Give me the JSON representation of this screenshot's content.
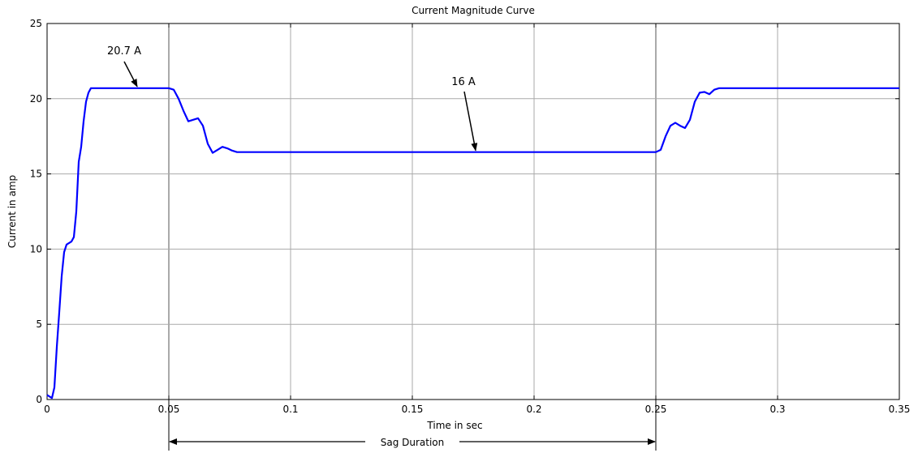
{
  "chart_data": {
    "type": "line",
    "title": "Current Magnitude Curve",
    "xlabel": "Time in sec",
    "ylabel": "Current in amp",
    "xlim": [
      0,
      0.35
    ],
    "ylim": [
      0,
      25
    ],
    "x_ticks": [
      0,
      0.05,
      0.1,
      0.15,
      0.2,
      0.25,
      0.3,
      0.35
    ],
    "x_tick_labels": [
      "0",
      "0.05",
      "0.1",
      "0.15",
      "0.2",
      "0.25",
      "0.3",
      "0.35"
    ],
    "y_ticks": [
      0,
      5,
      10,
      15,
      20,
      25
    ],
    "y_tick_labels": [
      "0",
      "5",
      "10",
      "15",
      "20",
      "25"
    ],
    "grid": true,
    "series": [
      {
        "color": "#0000ff",
        "x": [
          0,
          0.002,
          0.003,
          0.004,
          0.005,
          0.006,
          0.007,
          0.008,
          0.009,
          0.01,
          0.011,
          0.012,
          0.013,
          0.014,
          0.015,
          0.016,
          0.017,
          0.018,
          0.019,
          0.02,
          0.03,
          0.04,
          0.05,
          0.052,
          0.054,
          0.056,
          0.058,
          0.06,
          0.062,
          0.064,
          0.066,
          0.068,
          0.07,
          0.072,
          0.074,
          0.076,
          0.078,
          0.1,
          0.15,
          0.2,
          0.25,
          0.252,
          0.254,
          0.256,
          0.258,
          0.26,
          0.262,
          0.264,
          0.266,
          0.268,
          0.27,
          0.272,
          0.274,
          0.276,
          0.3,
          0.35
        ],
        "y": [
          0.3,
          0.1,
          0.8,
          3.5,
          5.8,
          8.2,
          9.8,
          10.3,
          10.4,
          10.5,
          10.8,
          12.5,
          15.8,
          16.8,
          18.5,
          19.8,
          20.4,
          20.7,
          20.7,
          20.7,
          20.7,
          20.7,
          20.7,
          20.6,
          20.0,
          19.2,
          18.5,
          18.6,
          18.7,
          18.2,
          17.0,
          16.4,
          16.6,
          16.8,
          16.7,
          16.55,
          16.45,
          16.45,
          16.45,
          16.45,
          16.45,
          16.6,
          17.5,
          18.2,
          18.4,
          18.2,
          18.05,
          18.6,
          19.8,
          20.4,
          20.45,
          20.3,
          20.6,
          20.7,
          20.7,
          20.7
        ]
      }
    ],
    "annotations": [
      {
        "text": "20.7 A",
        "x": 0.037,
        "y": 20.7
      },
      {
        "text": "16 A",
        "x": 0.176,
        "y": 16.45
      }
    ],
    "span_annotation": {
      "text": "Sag Duration",
      "x_start": 0.05,
      "x_end": 0.25
    }
  }
}
